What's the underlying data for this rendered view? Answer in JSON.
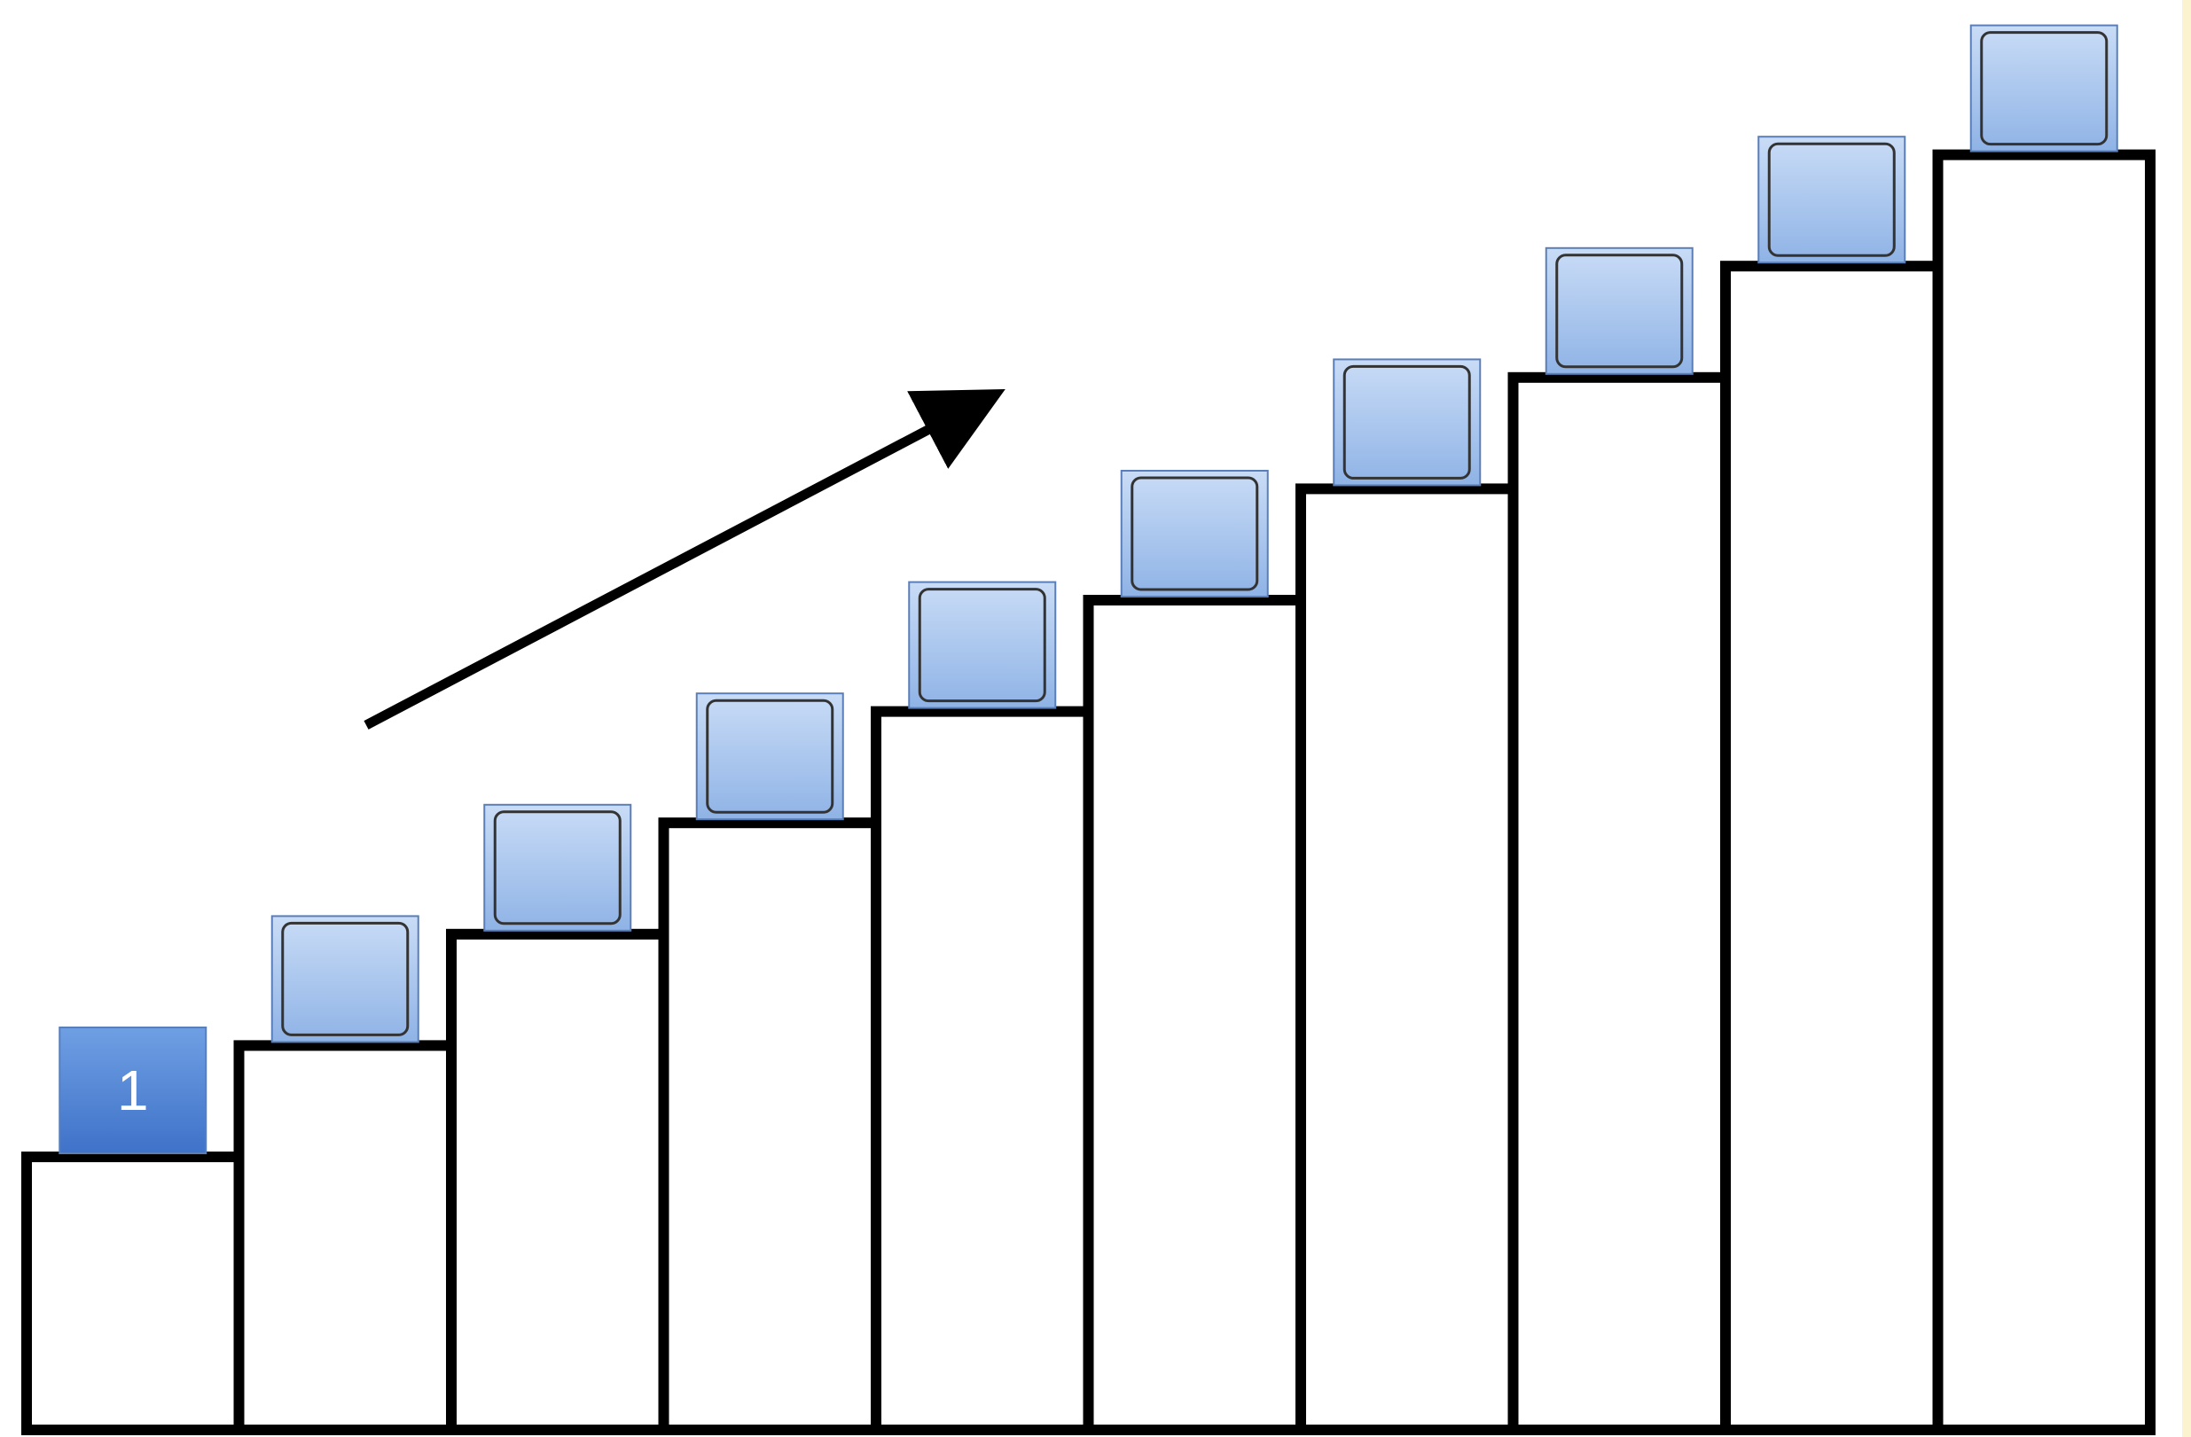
{
  "diagram": {
    "steps": [
      {
        "level": 1,
        "block_label": "1"
      },
      {
        "level": 2,
        "block_label": ""
      },
      {
        "level": 3,
        "block_label": ""
      },
      {
        "level": 4,
        "block_label": ""
      },
      {
        "level": 5,
        "block_label": ""
      },
      {
        "level": 6,
        "block_label": ""
      },
      {
        "level": 7,
        "block_label": ""
      },
      {
        "level": 8,
        "block_label": ""
      },
      {
        "level": 9,
        "block_label": ""
      },
      {
        "level": 10,
        "block_label": ""
      }
    ],
    "arrow_icon": "up-right-arrow-icon"
  },
  "colors": {
    "step_stroke": "#000000",
    "step_fill": "#ffffff",
    "block_top": "#c9dcf6",
    "block_bottom": "#8fb3e6",
    "block_first_top": "#6f9fe3",
    "block_first_bottom": "#3f72c9",
    "block_border": "#5a7fb8",
    "edge_strip": "#fbf3cf"
  }
}
